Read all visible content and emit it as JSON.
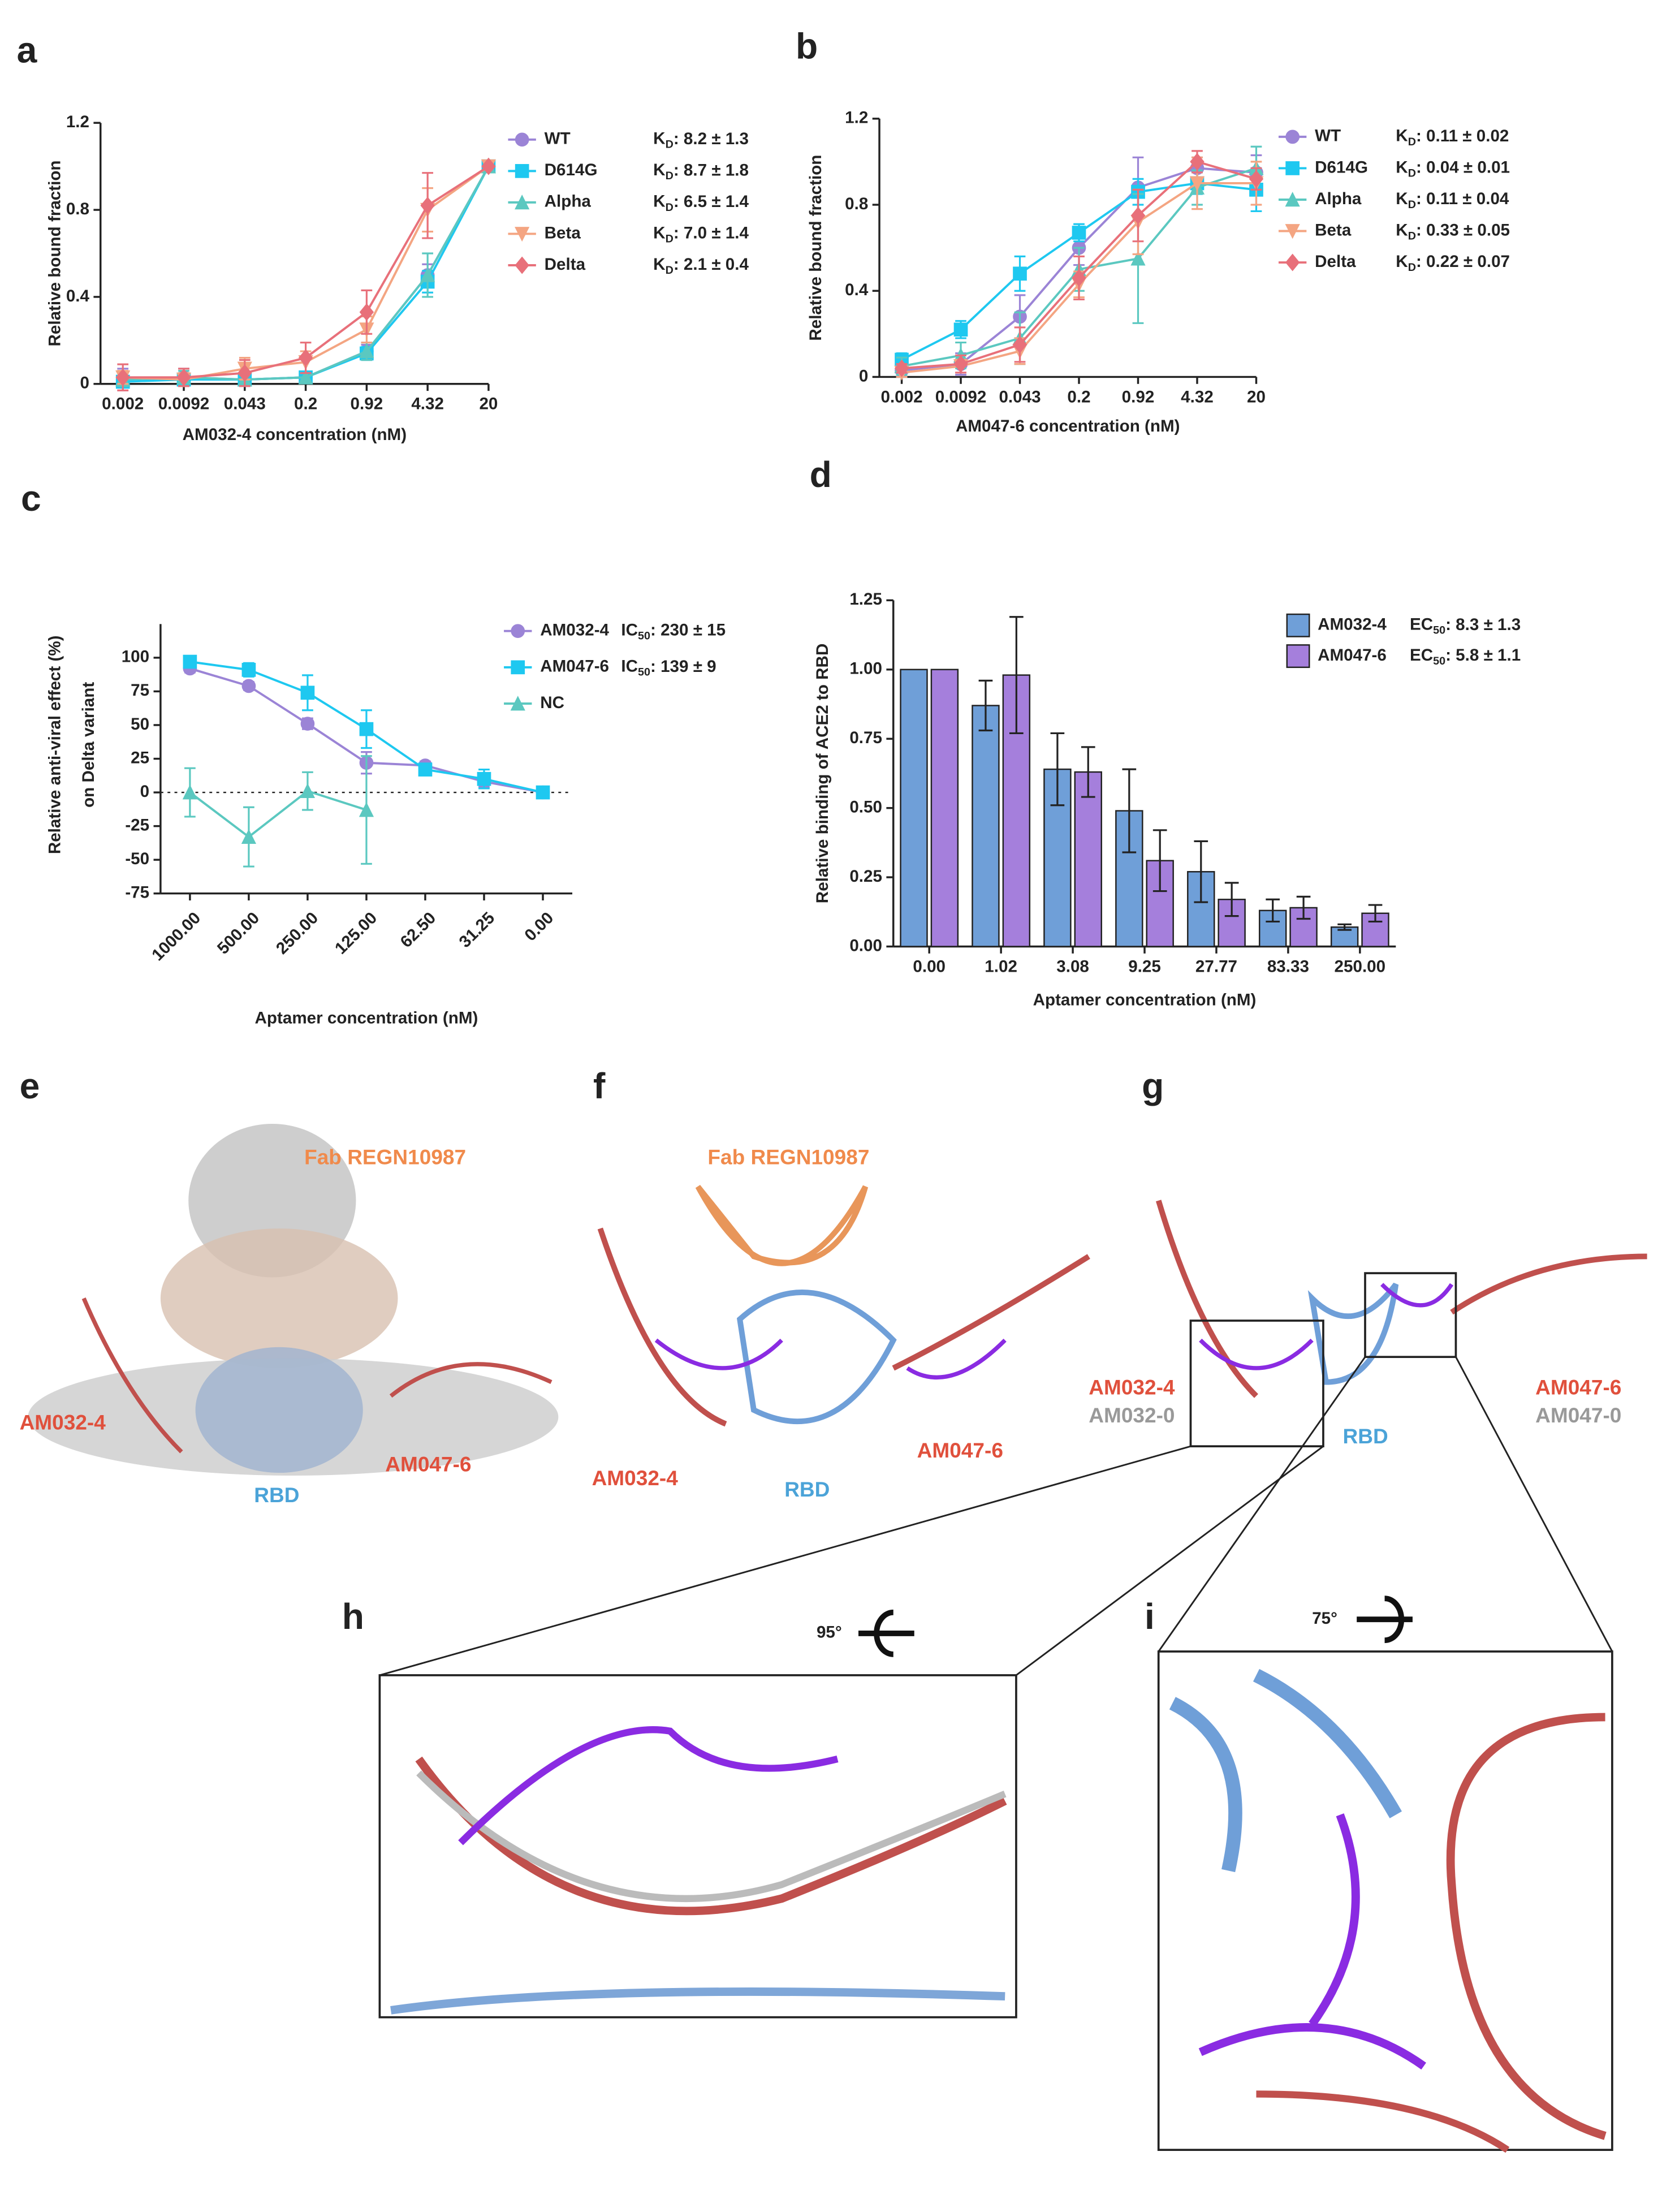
{
  "chart_data": [
    {
      "panel_label": "a",
      "type": "line",
      "x_label": "AM032-4 concentration (nM)",
      "y_label": "Relative bound fraction",
      "categories": [
        "0.002",
        "0.0092",
        "0.043",
        "0.2",
        "0.92",
        "4.32",
        "20"
      ],
      "ylim": [
        0,
        1.2
      ],
      "yticks": [
        0,
        0.4,
        0.8,
        1.2
      ],
      "series": [
        {
          "name": "WT",
          "stat": "KD: 8.2 ± 1.3",
          "color": "#9b84d6",
          "marker": "circle",
          "values": [
            0.02,
            0.03,
            0.02,
            0.03,
            0.15,
            0.5,
            1.0
          ],
          "errors": [
            0.05,
            0.04,
            0.03,
            0.02,
            0.03,
            0.05,
            0
          ]
        },
        {
          "name": "D614G",
          "stat": "KD: 8.7 ± 1.8",
          "color": "#1ec8f0",
          "marker": "square",
          "values": [
            0.01,
            0.02,
            0.02,
            0.03,
            0.14,
            0.47,
            1.0
          ],
          "errors": [
            0.02,
            0.02,
            0.02,
            0.02,
            0.03,
            0.05,
            0
          ]
        },
        {
          "name": "Alpha",
          "stat": "KD: 6.5 ± 1.4",
          "color": "#5bc8c0",
          "marker": "triangle",
          "values": [
            0.02,
            0.03,
            0.02,
            0.03,
            0.15,
            0.5,
            1.0
          ],
          "errors": [
            0.03,
            0.03,
            0.02,
            0.02,
            0.04,
            0.1,
            0
          ]
        },
        {
          "name": "Beta",
          "stat": "KD: 7.0 ± 1.4",
          "color": "#f4a582",
          "marker": "down-triangle",
          "values": [
            0.03,
            0.02,
            0.07,
            0.1,
            0.25,
            0.8,
            1.0
          ],
          "errors": [
            0.03,
            0.03,
            0.05,
            0.05,
            0.06,
            0.1,
            0
          ]
        },
        {
          "name": "Delta",
          "stat": "KD: 2.1 ± 0.4",
          "color": "#e8707a",
          "marker": "diamond",
          "values": [
            0.03,
            0.03,
            0.05,
            0.12,
            0.33,
            0.82,
            1.0
          ],
          "errors": [
            0.06,
            0.04,
            0.06,
            0.07,
            0.1,
            0.15,
            0
          ]
        }
      ]
    },
    {
      "panel_label": "b",
      "type": "line",
      "x_label": "AM047-6 concentration (nM)",
      "y_label": "Relative bound fraction",
      "categories": [
        "0.002",
        "0.0092",
        "0.043",
        "0.2",
        "0.92",
        "4.32",
        "20"
      ],
      "ylim": [
        0,
        1.2
      ],
      "yticks": [
        0,
        0.4,
        0.8,
        1.2
      ],
      "series": [
        {
          "name": "WT",
          "stat": "KD: 0.11 ± 0.02",
          "color": "#9b84d6",
          "marker": "circle",
          "values": [
            0.03,
            0.06,
            0.28,
            0.6,
            0.88,
            0.97,
            0.95
          ],
          "errors": [
            0.03,
            0.05,
            0.1,
            0.08,
            0.14,
            0.05,
            0.08
          ]
        },
        {
          "name": "D614G",
          "stat": "KD: 0.04 ± 0.01",
          "color": "#1ec8f0",
          "marker": "square",
          "values": [
            0.08,
            0.22,
            0.48,
            0.67,
            0.86,
            0.9,
            0.87
          ],
          "errors": [
            0.03,
            0.04,
            0.08,
            0.04,
            0.06,
            0.05,
            0.1
          ]
        },
        {
          "name": "Alpha",
          "stat": "KD: 0.11 ± 0.04",
          "color": "#5bc8c0",
          "marker": "triangle",
          "values": [
            0.05,
            0.1,
            0.18,
            0.5,
            0.55,
            0.88,
            0.97
          ],
          "errors": [
            0.04,
            0.06,
            0.12,
            0.1,
            0.3,
            0.08,
            0.1
          ]
        },
        {
          "name": "Beta",
          "stat": "KD: 0.33 ± 0.05",
          "color": "#f4a582",
          "marker": "down-triangle",
          "values": [
            0.02,
            0.05,
            0.12,
            0.43,
            0.72,
            0.9,
            0.9
          ],
          "errors": [
            0.02,
            0.03,
            0.06,
            0.06,
            0.15,
            0.12,
            0.1
          ]
        },
        {
          "name": "Delta",
          "stat": "KD: 0.22 ± 0.07",
          "color": "#e8707a",
          "marker": "diamond",
          "values": [
            0.04,
            0.06,
            0.15,
            0.46,
            0.75,
            1.0,
            0.92
          ],
          "errors": [
            0.02,
            0.04,
            0.08,
            0.1,
            0.12,
            0.05,
            0.05
          ]
        }
      ]
    },
    {
      "panel_label": "c",
      "type": "line",
      "x_label": "Aptamer concentration (nM)",
      "y_label": [
        "Relative anti-viral effect (%)",
        "on Delta variant"
      ],
      "categories": [
        "1000.00",
        "500.00",
        "250.00",
        "125.00",
        "62.50",
        "31.25",
        "0.00"
      ],
      "ylim": [
        -75,
        125
      ],
      "yticks": [
        -75,
        -50,
        -25,
        0,
        25,
        50,
        75,
        100
      ],
      "zero_line": true,
      "series": [
        {
          "name": "AM032-4",
          "stat": "IC50: 230 ± 15",
          "color": "#9b84d6",
          "marker": "circle",
          "values": [
            92,
            79,
            51,
            22,
            20,
            8,
            0
          ],
          "errors": [
            3,
            3,
            4,
            8,
            3,
            4,
            0
          ]
        },
        {
          "name": "AM047-6",
          "stat": "IC50: 139 ± 9",
          "color": "#1ec8f0",
          "marker": "square",
          "values": [
            97,
            91,
            74,
            47,
            17,
            10,
            0
          ],
          "errors": [
            3,
            5,
            13,
            14,
            3,
            7,
            0
          ]
        },
        {
          "name": "NC",
          "color": "#5bc8c0",
          "marker": "triangle",
          "values": [
            0,
            -33,
            1,
            -13,
            null,
            null,
            null
          ],
          "errors": [
            18,
            22,
            14,
            40,
            null,
            null,
            null
          ]
        }
      ]
    },
    {
      "panel_label": "d",
      "type": "bar",
      "x_label": "Aptamer concentration (nM)",
      "y_label": "Relative binding of ACE2 to RBD",
      "categories": [
        "0.00",
        "1.02",
        "3.08",
        "9.25",
        "27.77",
        "83.33",
        "250.00"
      ],
      "ylim": [
        0,
        1.25
      ],
      "yticks": [
        {
          "value": 0,
          "label": "0.00"
        },
        {
          "value": 0.25,
          "label": "0.25"
        },
        {
          "value": 0.5,
          "label": "0.50"
        },
        {
          "value": 0.75,
          "label": "0.75"
        },
        {
          "value": 1,
          "label": "1.00"
        },
        {
          "value": 1.25,
          "label": "1.25"
        }
      ],
      "series": [
        {
          "name": "AM032-4",
          "stat": "EC50: 8.3 ± 1.3",
          "color": "#6f9fd8",
          "values": [
            1.0,
            0.87,
            0.64,
            0.49,
            0.27,
            0.13,
            0.07
          ],
          "errors": [
            0,
            0.09,
            0.13,
            0.15,
            0.11,
            0.04,
            0.01
          ]
        },
        {
          "name": "AM047-6",
          "stat": "EC50: 5.8 ± 1.1",
          "color": "#a57fdc",
          "values": [
            1.0,
            0.98,
            0.63,
            0.31,
            0.17,
            0.14,
            0.12
          ],
          "errors": [
            0,
            0.21,
            0.09,
            0.11,
            0.06,
            0.04,
            0.03
          ]
        }
      ]
    }
  ],
  "structures": {
    "e": {
      "panel_label": "e",
      "fab": "Fab REGN10987",
      "left": "AM032-4",
      "right": "AM047-6",
      "rbd": "RBD"
    },
    "f": {
      "panel_label": "f",
      "fab": "Fab REGN10987",
      "left": "AM032-4",
      "right": "AM047-6",
      "rbd": "RBD"
    },
    "g": {
      "panel_label": "g",
      "left": "AM032-4",
      "left_ref": "AM032-0",
      "right": "AM047-6",
      "right_ref": "AM047-0",
      "rbd": "RBD"
    },
    "h": {
      "panel_label": "h",
      "rotation": "95°"
    },
    "i": {
      "panel_label": "i",
      "rotation": "75°"
    }
  }
}
